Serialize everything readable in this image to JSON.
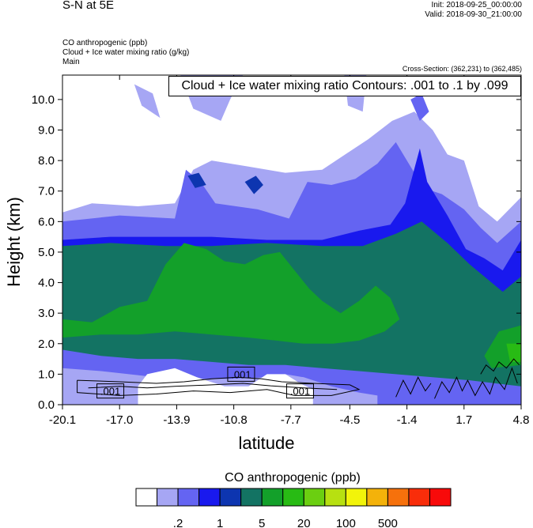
{
  "header": {
    "title": "S-N at 5E",
    "init": "Init: 2018-09-25_00:00:00",
    "valid": "Valid: 2018-09-30_21:00:00",
    "field1": "CO anthropogenic   (ppb)",
    "field2": "Cloud + Ice water mixing ratio   (g/kg)",
    "field3": "Main",
    "cross_section": "Cross-Section: (362,231) to (362,485)"
  },
  "contour_info": "Cloud + Ice water mixing ratio Contours: .001 to .1 by .099",
  "colorbar": {
    "title": "CO anthropogenic  (ppb)",
    "colors": [
      "#ffffff",
      "#a6a6f4",
      "#6464f2",
      "#1919ee",
      "#0d35b0",
      "#137363",
      "#13a02a",
      "#28bb14",
      "#6bcf11",
      "#b7e011",
      "#f2f40a",
      "#f4b20a",
      "#f6710c",
      "#f92d0a",
      "#f80a0a"
    ],
    "labels": [
      ".2",
      "1",
      "5",
      "20",
      "100",
      "500"
    ]
  },
  "chart_data": {
    "type": "heatmap",
    "xlabel": "latitude",
    "ylabel": "Height (km)",
    "x_ticks": [
      "-20.1",
      "-17.0",
      "-13.9",
      "-10.8",
      "-7.7",
      "-4.5",
      "-1.4",
      "1.7",
      "4.8"
    ],
    "y_ticks": [
      "0.0",
      "1.0",
      "2.0",
      "3.0",
      "4.0",
      "5.0",
      "6.0",
      "7.0",
      "8.0",
      "9.0",
      "10.0"
    ],
    "xlim": [
      -20.1,
      4.8
    ],
    "ylim": [
      0,
      10.8
    ],
    "contour_labels": [
      {
        "text": ".001",
        "x": -17.5,
        "y": 0.45
      },
      {
        "text": ".001",
        "x": -10.4,
        "y": 1.0
      },
      {
        "text": ".001",
        "x": -7.2,
        "y": 0.45
      }
    ],
    "regions": [
      {
        "level": 1,
        "polygon": [
          [
            -20.1,
            6.3
          ],
          [
            -18.5,
            6.6
          ],
          [
            -16,
            6.5
          ],
          [
            -14,
            6.6
          ],
          [
            -13,
            7.7
          ],
          [
            -12,
            8.0
          ],
          [
            -10,
            7.8
          ],
          [
            -8,
            7.6
          ],
          [
            -6,
            7.7
          ],
          [
            -5,
            8.1
          ],
          [
            -3.5,
            8.7
          ],
          [
            -2.2,
            9.3
          ],
          [
            -1,
            9.6
          ],
          [
            0,
            9.0
          ],
          [
            0.8,
            8.2
          ],
          [
            1.7,
            8.0
          ],
          [
            2.5,
            6.5
          ],
          [
            3.5,
            6.0
          ],
          [
            4.8,
            6.8
          ],
          [
            4.8,
            0
          ],
          [
            -20.1,
            0
          ]
        ]
      },
      {
        "level": 1,
        "polygon": [
          [
            -16.2,
            10.5
          ],
          [
            -15.8,
            9.8
          ],
          [
            -14.8,
            9.4
          ],
          [
            -15.2,
            10.2
          ]
        ]
      },
      {
        "level": 1,
        "polygon": [
          [
            -13.7,
            10.8
          ],
          [
            -13,
            9.7
          ],
          [
            -11.5,
            9.3
          ],
          [
            -11,
            10.0
          ],
          [
            -10.3,
            10.8
          ]
        ]
      },
      {
        "level": 1,
        "polygon": [
          [
            -4.8,
            10.8
          ],
          [
            -4.6,
            9.8
          ],
          [
            -3.8,
            9.6
          ],
          [
            -3.6,
            10.8
          ]
        ]
      },
      {
        "level": 2,
        "polygon": [
          [
            -20.1,
            6.0
          ],
          [
            -17,
            6.2
          ],
          [
            -14,
            6.1
          ],
          [
            -13.4,
            7.7
          ],
          [
            -12.6,
            7.3
          ],
          [
            -11.8,
            6.6
          ],
          [
            -9.5,
            6.4
          ],
          [
            -7.8,
            6.1
          ],
          [
            -6.8,
            7.3
          ],
          [
            -5.5,
            7.2
          ],
          [
            -4.2,
            7.4
          ],
          [
            -3,
            7.9
          ],
          [
            -2,
            8.6
          ],
          [
            -1.3,
            7.9
          ],
          [
            -0.5,
            7.1
          ],
          [
            0.5,
            6.9
          ],
          [
            1.7,
            6.4
          ],
          [
            2.6,
            5.8
          ],
          [
            3.5,
            5.3
          ],
          [
            4.8,
            6.0
          ],
          [
            4.8,
            0
          ],
          [
            -20.1,
            0
          ]
        ]
      },
      {
        "level": 2,
        "polygon": [
          [
            -1.2,
            10.0
          ],
          [
            -0.7,
            9.3
          ],
          [
            -0.2,
            9.6
          ],
          [
            -0.6,
            10.2
          ]
        ]
      },
      {
        "level": 3,
        "polygon": [
          [
            -20.1,
            5.4
          ],
          [
            -17.5,
            5.5
          ],
          [
            -14.5,
            5.5
          ],
          [
            -12,
            5.5
          ],
          [
            -9,
            5.4
          ],
          [
            -6,
            5.4
          ],
          [
            -4,
            5.7
          ],
          [
            -2.3,
            5.9
          ],
          [
            -1.5,
            6.6
          ],
          [
            -0.7,
            8.4
          ],
          [
            -0.3,
            7.3
          ],
          [
            0.8,
            6.2
          ],
          [
            1.8,
            5.1
          ],
          [
            2.8,
            4.8
          ],
          [
            3.8,
            4.4
          ],
          [
            4.8,
            5.4
          ],
          [
            4.8,
            0
          ],
          [
            -20.1,
            0
          ]
        ]
      },
      {
        "level": 4,
        "polygon": [
          [
            -13.3,
            7.5
          ],
          [
            -12.9,
            7.1
          ],
          [
            -12.3,
            7.2
          ],
          [
            -12.7,
            7.6
          ]
        ]
      },
      {
        "level": 4,
        "polygon": [
          [
            -10.2,
            7.3
          ],
          [
            -9.7,
            6.9
          ],
          [
            -9.2,
            7.2
          ],
          [
            -9.6,
            7.5
          ]
        ]
      },
      {
        "level": 5,
        "polygon": [
          [
            -20.1,
            5.2
          ],
          [
            -17.5,
            5.3
          ],
          [
            -14.5,
            5.2
          ],
          [
            -12,
            5.2
          ],
          [
            -9,
            5.3
          ],
          [
            -6,
            5.2
          ],
          [
            -3.8,
            5.2
          ],
          [
            -2,
            5.6
          ],
          [
            -0.6,
            6.0
          ],
          [
            0.8,
            5.3
          ],
          [
            2,
            4.6
          ],
          [
            3,
            4.1
          ],
          [
            3.8,
            3.7
          ],
          [
            4.8,
            4.2
          ],
          [
            4.8,
            0
          ],
          [
            -20.1,
            0
          ]
        ]
      },
      {
        "level": 6,
        "polygon": [
          [
            -20.1,
            2.8
          ],
          [
            -18.5,
            2.7
          ],
          [
            -17,
            3.2
          ],
          [
            -15.5,
            3.4
          ],
          [
            -14.5,
            4.6
          ],
          [
            -13.5,
            5.3
          ],
          [
            -12.3,
            5.1
          ],
          [
            -11.3,
            4.7
          ],
          [
            -10.2,
            4.6
          ],
          [
            -9.2,
            4.9
          ],
          [
            -8.3,
            5.0
          ],
          [
            -7.5,
            4.4
          ],
          [
            -6.7,
            3.8
          ],
          [
            -6.0,
            3.4
          ],
          [
            -5.0,
            3.0
          ],
          [
            -4.0,
            3.4
          ],
          [
            -3.1,
            3.9
          ],
          [
            -2.3,
            3.5
          ],
          [
            -1.8,
            2.8
          ],
          [
            -2.6,
            2.4
          ],
          [
            -4.0,
            2.1
          ],
          [
            -5.4,
            2.0
          ],
          [
            -7,
            2.0
          ],
          [
            -8.5,
            2.1
          ],
          [
            -10,
            2.2
          ],
          [
            -12,
            2.3
          ],
          [
            -14,
            2.4
          ],
          [
            -16,
            2.3
          ],
          [
            -18,
            2.3
          ],
          [
            -20.1,
            2.2
          ]
        ]
      },
      {
        "level": 6,
        "polygon": [
          [
            3.6,
            2.4
          ],
          [
            4.8,
            2.6
          ],
          [
            4.8,
            1.3
          ],
          [
            3.2,
            1.2
          ],
          [
            2.8,
            1.6
          ]
        ]
      },
      {
        "level": 7,
        "polygon": [
          [
            4.0,
            2.0
          ],
          [
            4.8,
            2.0
          ],
          [
            4.8,
            1.4
          ],
          [
            4.2,
            1.4
          ]
        ]
      },
      {
        "level": 2,
        "polygon": [
          [
            -20.1,
            1.8
          ],
          [
            -18,
            1.6
          ],
          [
            -16,
            1.5
          ],
          [
            -14,
            1.5
          ],
          [
            -12,
            1.4
          ],
          [
            -10,
            1.3
          ],
          [
            -8,
            1.3
          ],
          [
            -6,
            1.2
          ],
          [
            -4,
            1.1
          ],
          [
            -2,
            1.0
          ],
          [
            0,
            0.9
          ],
          [
            2,
            0.8
          ],
          [
            4.8,
            0.6
          ],
          [
            4.8,
            0
          ],
          [
            -20.1,
            0
          ]
        ]
      },
      {
        "level": 1,
        "polygon": [
          [
            -20.1,
            1.2
          ],
          [
            -18,
            1.1
          ],
          [
            -16.5,
            1.0
          ],
          [
            -15,
            0.9
          ],
          [
            -13,
            0.85
          ],
          [
            -11,
            0.85
          ],
          [
            -9,
            0.9
          ],
          [
            -8,
            1.0
          ],
          [
            -7,
            0.9
          ],
          [
            -5.5,
            0.6
          ],
          [
            -4,
            0.4
          ],
          [
            -3,
            0.3
          ],
          [
            -3,
            0
          ],
          [
            -20.1,
            0
          ]
        ]
      },
      {
        "level": 0,
        "polygon": [
          [
            -16,
            0.6
          ],
          [
            -15.5,
            1.0
          ],
          [
            -14,
            1.2
          ],
          [
            -12.8,
            0.9
          ],
          [
            -11.3,
            0.6
          ],
          [
            -10,
            0.6
          ],
          [
            -9,
            1.0
          ],
          [
            -8,
            1.0
          ],
          [
            -7.2,
            0.7
          ],
          [
            -6.5,
            0.5
          ],
          [
            -6.5,
            0
          ],
          [
            -16,
            0
          ]
        ]
      }
    ]
  }
}
